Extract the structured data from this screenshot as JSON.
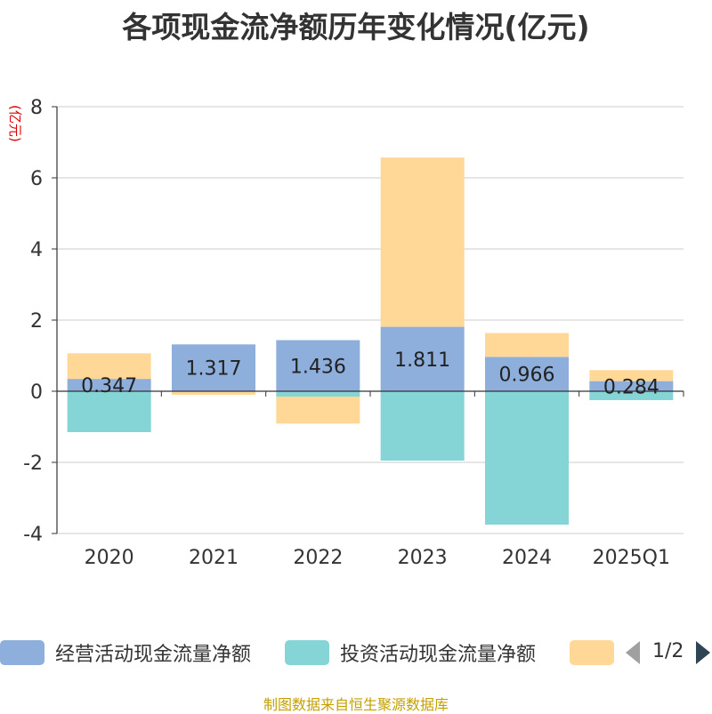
{
  "chart_data": {
    "type": "bar",
    "title": "各项现金流净额历年变化情况(亿元)",
    "ylabel": "(亿元)",
    "categories": [
      "2020",
      "2021",
      "2022",
      "2023",
      "2024",
      "2025Q1"
    ],
    "ylim": [
      -4,
      8
    ],
    "yticks": [
      "8",
      "6",
      "4",
      "2",
      "0",
      "-2",
      "-4"
    ],
    "ytick_values": [
      8,
      6,
      4,
      2,
      0,
      -2,
      -4
    ],
    "stacked": true,
    "grid": true,
    "legend_position": "bottom",
    "series": [
      {
        "name": "经营活动现金流量净额",
        "color": "#8eaedb",
        "values": [
          0.347,
          1.317,
          1.436,
          1.811,
          0.966,
          0.284
        ],
        "labels": [
          "0.347",
          "1.317",
          "1.436",
          "1.811",
          "0.966",
          "0.284"
        ]
      },
      {
        "name": "投资活动现金流量净额",
        "color": "#85d4d6",
        "values": [
          -1.15,
          0.0,
          -0.15,
          -1.95,
          -3.75,
          -0.25
        ]
      },
      {
        "name": "",
        "color": "#ffd898",
        "values": [
          0.72,
          -0.1,
          -0.76,
          4.76,
          0.67,
          0.31
        ]
      }
    ]
  },
  "legend": {
    "items": [
      {
        "label": "经营活动现金流量净额",
        "color": "#8eaedb"
      },
      {
        "label": "投资活动现金流量净额",
        "color": "#85d4d6"
      },
      {
        "label": "",
        "color": "#ffd898"
      }
    ],
    "page": "1/2"
  },
  "source": "制图数据来自恒生聚源数据库"
}
